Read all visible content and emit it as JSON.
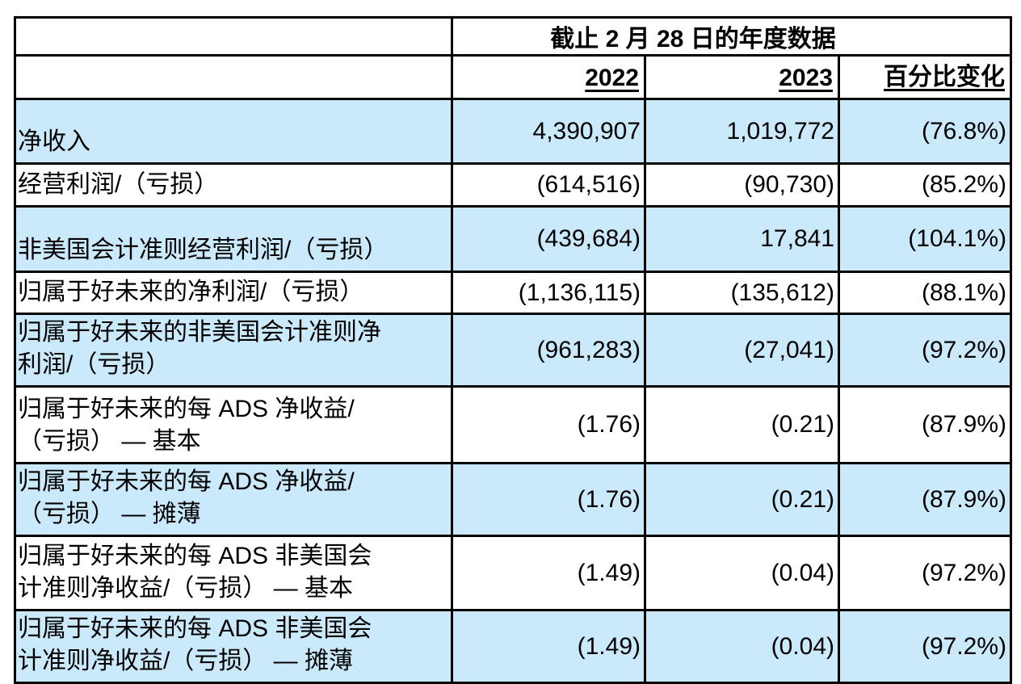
{
  "table": {
    "header": {
      "period_title": "截止 2 月 28 日的年度数据",
      "columns": [
        "2022",
        "2023",
        "百分比变化"
      ]
    },
    "rows": [
      {
        "label": "净收入",
        "y2022": "4,390,907",
        "y2023": "1,019,772",
        "pct_change": "(76.8%)"
      },
      {
        "label": "经营利润/（亏损）",
        "y2022": "(614,516)",
        "y2023": "(90,730)",
        "pct_change": "(85.2%)"
      },
      {
        "label": "非美国会计准则经营利润/（亏损）",
        "y2022": "(439,684)",
        "y2023": "17,841",
        "pct_change": "(104.1%)"
      },
      {
        "label": "归属于好未来的净利润/（亏损）",
        "y2022": "(1,136,115)",
        "y2023": "(135,612)",
        "pct_change": "(88.1%)"
      },
      {
        "label": "归属于好未来的非美国会计准则净\n利润/（亏损）",
        "y2022": "(961,283)",
        "y2023": "(27,041)",
        "pct_change": "(97.2%)"
      },
      {
        "label": "归属于好未来的每 ADS 净收益/\n（亏损） — 基本",
        "y2022": "(1.76)",
        "y2023": "(0.21)",
        "pct_change": "(87.9%)"
      },
      {
        "label": "归属于好未来的每 ADS 净收益/\n（亏损） — 摊薄",
        "y2022": "(1.76)",
        "y2023": "(0.21)",
        "pct_change": "(87.9%)"
      },
      {
        "label": "归属于好未来的每 ADS 非美国会\n计准则净收益/（亏损） — 基本",
        "y2022": "(1.49)",
        "y2023": "(0.04)",
        "pct_change": "(97.2%)"
      },
      {
        "label": "归属于好未来的每 ADS 非美国会\n计准则净收益/（亏损） — 摊薄",
        "y2022": "(1.49)",
        "y2023": "(0.04)",
        "pct_change": "(97.2%)"
      }
    ],
    "colors": {
      "row_highlight": "#CAE9FB",
      "border": "#000000",
      "text": "#000000",
      "background": "#FFFFFF"
    }
  }
}
